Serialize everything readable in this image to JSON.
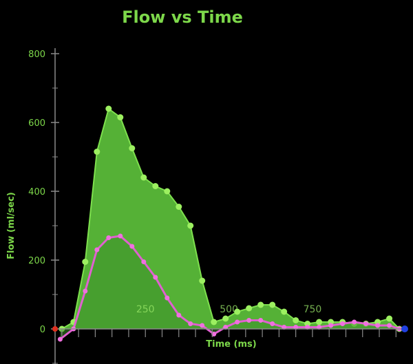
{
  "chart_data": {
    "type": "area",
    "title": "Flow vs Time",
    "xlabel": "Time (ms)",
    "ylabel": "Flow (ml/sec)",
    "xlim": [
      -10,
      1020
    ],
    "ylim": [
      -100,
      800
    ],
    "yticks": [
      0,
      200,
      400,
      600,
      800
    ],
    "xtick_labels": [
      {
        "value": 250,
        "label": "250"
      },
      {
        "value": 500,
        "label": "500"
      },
      {
        "value": 750,
        "label": "750"
      }
    ],
    "grid": false,
    "legend": "none",
    "colors": {
      "total_fill": "#5ec43c",
      "total_line": "#7ee04e",
      "total_marker": "#9cf060",
      "inner_fill": "#3d8f2a",
      "inner_line": "#e060d0",
      "inner_marker": "#f070e0",
      "axis": "#8a8a8a",
      "text": "#7dd84a",
      "start_marker": "#e03020",
      "end_marker": "#2040e0"
    },
    "series": [
      {
        "x": [
          0,
          35,
          70,
          105,
          140,
          175,
          210,
          245,
          280,
          315,
          350,
          385,
          420,
          455,
          490,
          525,
          560,
          595,
          630,
          665,
          700,
          735,
          770,
          805,
          840,
          875,
          910,
          945,
          980,
          1010
        ],
        "values": [
          0,
          20,
          195,
          515,
          640,
          615,
          525,
          440,
          415,
          400,
          355,
          300,
          140,
          20,
          30,
          50,
          60,
          70,
          70,
          50,
          25,
          15,
          20,
          20,
          20,
          15,
          15,
          20,
          30,
          0
        ]
      },
      {
        "x": [
          -5,
          35,
          70,
          105,
          140,
          175,
          210,
          245,
          280,
          315,
          350,
          385,
          420,
          455,
          490,
          525,
          560,
          595,
          630,
          665,
          700,
          735,
          770,
          805,
          840,
          875,
          910,
          945,
          980,
          1010
        ],
        "values": [
          -30,
          0,
          110,
          230,
          265,
          270,
          240,
          195,
          150,
          90,
          40,
          15,
          10,
          -15,
          5,
          20,
          25,
          25,
          15,
          5,
          5,
          5,
          5,
          10,
          15,
          20,
          15,
          10,
          10,
          0
        ]
      }
    ]
  }
}
